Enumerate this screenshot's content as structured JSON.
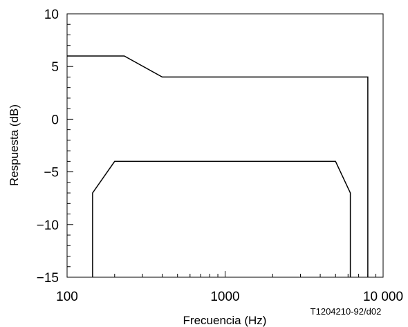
{
  "chart_data": {
    "type": "line",
    "title": "",
    "xlabel": "Frecuencia (Hz)",
    "ylabel": "Respuesta (dB)",
    "x_scale": "log",
    "xlim": [
      100,
      10000
    ],
    "ylim": [
      -15,
      10
    ],
    "grid": false,
    "legend": "none",
    "x_ticks": [
      100,
      1000,
      10000
    ],
    "x_tick_labels": [
      "100",
      "1000",
      "10 000"
    ],
    "y_ticks": [
      10,
      5,
      0,
      -5,
      -10,
      -15
    ],
    "y_tick_labels": [
      "10",
      "5",
      "0",
      "−5",
      "−10",
      "−15"
    ],
    "figure_code": "T1204210-92/d02",
    "series": [
      {
        "x": [
          100,
          230,
          400,
          8000,
          8000
        ],
        "y": [
          6,
          6,
          4,
          4,
          -15
        ]
      },
      {
        "x": [
          145,
          145,
          200,
          5000,
          6200,
          6200
        ],
        "y": [
          -15,
          -7,
          -4,
          -4,
          -7,
          -15
        ]
      }
    ],
    "colors": {
      "axis": "#000000",
      "line": "#000000"
    }
  }
}
